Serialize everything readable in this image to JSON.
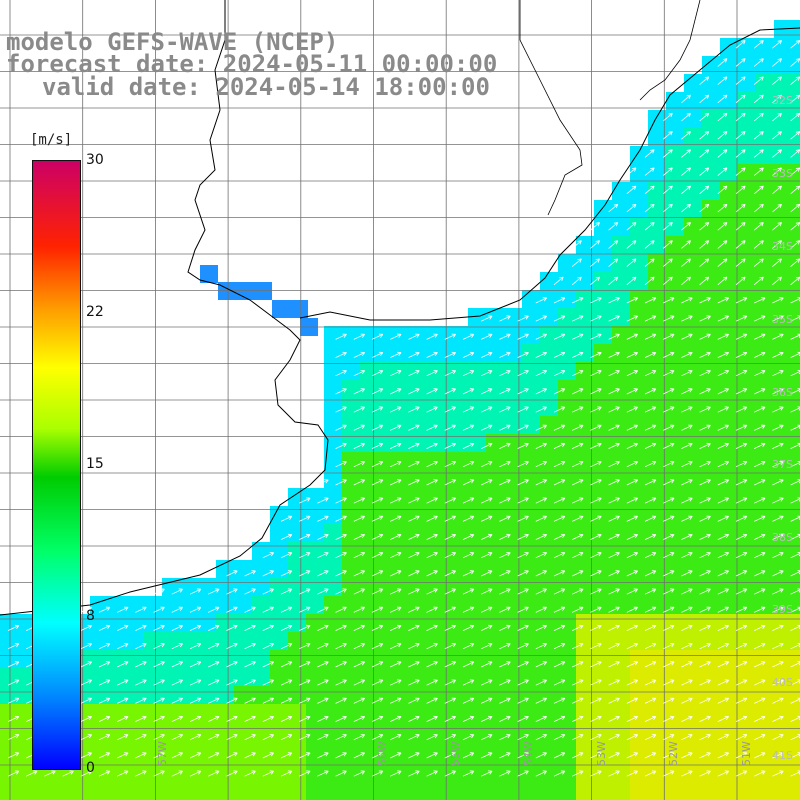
{
  "title": {
    "line1": "modelo GEFS-WAVE (NCEP)",
    "line2": "forecast date: 2024-05-11 00:00:00",
    "line3": "valid date: 2024-05-14 18:00:00"
  },
  "colorbar": {
    "units": "[m/s]",
    "ticks": [
      "0",
      "8",
      "15",
      "22",
      "30"
    ],
    "range": [
      0,
      30
    ],
    "colors": [
      "#0000ff",
      "#00ffff",
      "#00cc00",
      "#ffff00",
      "#ff2200",
      "#cc0066"
    ]
  },
  "map": {
    "land_color": "#ffffff",
    "grid_color": "#707070",
    "coast_color": "#000000",
    "arrow_color": "#ffffff",
    "lat_labels": [
      "32S",
      "33S",
      "34S",
      "35S",
      "36S",
      "37S",
      "38S",
      "39S",
      "40S",
      "41S"
    ],
    "lon_labels": [
      "57W",
      "56W",
      "55W",
      "54W",
      "53W",
      "52W",
      "51W"
    ]
  }
}
